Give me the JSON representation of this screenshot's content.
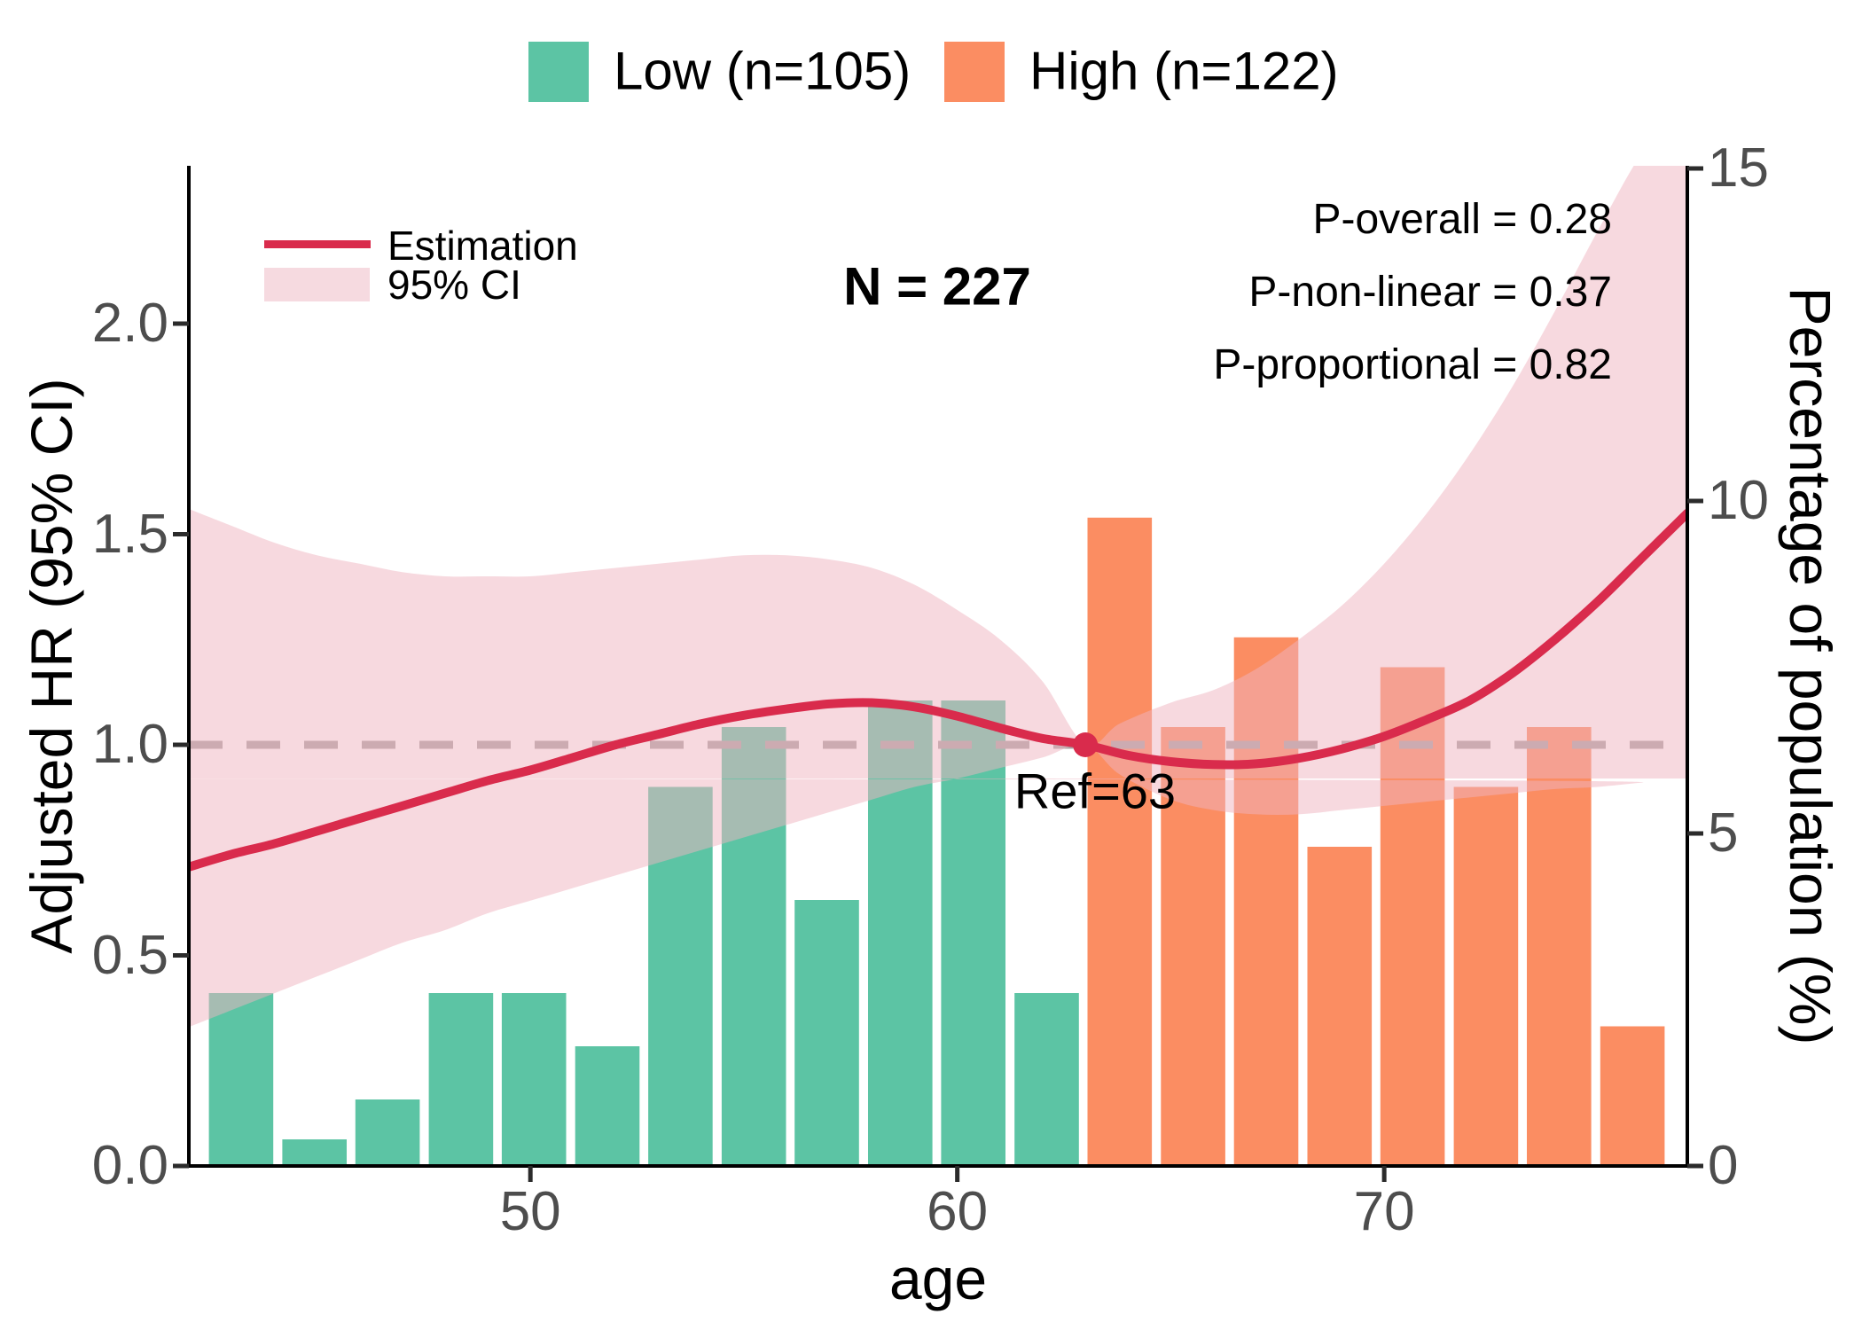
{
  "figure": {
    "legend_top": {
      "low": "Low (n=105)",
      "high": "High (n=122)"
    },
    "legend_inner": {
      "estimation": "Estimation",
      "ci": "95% CI"
    },
    "annotations": {
      "n": "N = 227",
      "p_overall": "P-overall = 0.28",
      "p_non_linear": "P-non-linear = 0.37",
      "p_proportional": "P-proportional = 0.82",
      "ref": "Ref=63"
    },
    "axes": {
      "left_title": "Adjusted HR (95% CI)",
      "right_title": "Percentage of population (%)",
      "bottom_title": "age"
    }
  },
  "colors": {
    "low_bar": "#5CC4A4",
    "high_bar": "#FB8D62",
    "estimation_line": "#D92B4C",
    "ci_band_fill_rgba": "rgba(239,179,191,0.5)",
    "ci_legend_swatch": "#F6DAE0",
    "dashed_reference": "#A8A2A2",
    "axis_line": "#000000",
    "tick_text": "#4d4d4d"
  },
  "chart_data": {
    "type": "combo (restricted-cubic-spline HR curve + population histogram)",
    "n_total": 227,
    "x_axis": {
      "label": "age",
      "range": [
        42.0,
        77.1
      ],
      "ticks": [
        50,
        60,
        70
      ]
    },
    "y_left_axis": {
      "label": "Adjusted HR (95% CI)",
      "range": [
        0,
        2.37
      ],
      "ticks": [
        "0.0",
        "0.5",
        "1.0",
        "1.5",
        "2.0"
      ],
      "tick_values": [
        0,
        0.5,
        1.0,
        1.5,
        2.0
      ]
    },
    "y_right_axis": {
      "label": "Percentage of population (%)",
      "range": [
        0,
        15
      ],
      "ticks": [
        "0",
        "5",
        "10",
        "15"
      ],
      "tick_values": [
        0,
        5,
        10,
        15
      ]
    },
    "reference": {
      "age": 63,
      "hr": 1.0,
      "label": "Ref=63"
    },
    "dashed_line_hr": 1.0,
    "stats": {
      "p_overall": 0.28,
      "p_non_linear": 0.37,
      "p_proportional": 0.82
    },
    "histogram": {
      "bin_width_years": 1.715,
      "groups": [
        {
          "id": "low",
          "name": "Low (n=105)",
          "n": 105,
          "color": "#5CC4A4"
        },
        {
          "id": "high",
          "name": "High (n=122)",
          "n": 122,
          "color": "#FB8D62"
        }
      ],
      "bars": [
        {
          "age_start": 42.47,
          "pct": 2.6,
          "group": "low"
        },
        {
          "age_start": 44.19,
          "pct": 0.4,
          "group": "low"
        },
        {
          "age_start": 45.9,
          "pct": 1.0,
          "group": "low"
        },
        {
          "age_start": 47.62,
          "pct": 2.6,
          "group": "low"
        },
        {
          "age_start": 49.33,
          "pct": 2.6,
          "group": "low"
        },
        {
          "age_start": 51.05,
          "pct": 1.8,
          "group": "low"
        },
        {
          "age_start": 52.76,
          "pct": 5.7,
          "group": "low"
        },
        {
          "age_start": 54.48,
          "pct": 6.6,
          "group": "low"
        },
        {
          "age_start": 56.19,
          "pct": 4.0,
          "group": "low"
        },
        {
          "age_start": 57.91,
          "pct": 7.0,
          "group": "low"
        },
        {
          "age_start": 59.62,
          "pct": 7.0,
          "group": "low"
        },
        {
          "age_start": 61.34,
          "pct": 2.6,
          "group": "low"
        },
        {
          "age_start": 63.05,
          "pct": 9.75,
          "group": "high"
        },
        {
          "age_start": 64.77,
          "pct": 6.6,
          "group": "high"
        },
        {
          "age_start": 66.48,
          "pct": 7.95,
          "group": "high"
        },
        {
          "age_start": 68.2,
          "pct": 4.8,
          "group": "high"
        },
        {
          "age_start": 69.91,
          "pct": 7.5,
          "group": "high"
        },
        {
          "age_start": 71.63,
          "pct": 5.7,
          "group": "high"
        },
        {
          "age_start": 73.34,
          "pct": 6.6,
          "group": "high"
        },
        {
          "age_start": 75.06,
          "pct": 2.1,
          "group": "high"
        }
      ]
    },
    "hr_curve": {
      "name": "Estimation",
      "points": [
        [
          42,
          0.71
        ],
        [
          43,
          0.74
        ],
        [
          44,
          0.765
        ],
        [
          45,
          0.795
        ],
        [
          46,
          0.825
        ],
        [
          47,
          0.855
        ],
        [
          48,
          0.885
        ],
        [
          49,
          0.915
        ],
        [
          50,
          0.94
        ],
        [
          51,
          0.97
        ],
        [
          52,
          1.0
        ],
        [
          53,
          1.025
        ],
        [
          54,
          1.05
        ],
        [
          55,
          1.07
        ],
        [
          56,
          1.085
        ],
        [
          57,
          1.097
        ],
        [
          58,
          1.1
        ],
        [
          59,
          1.09
        ],
        [
          60,
          1.068
        ],
        [
          61,
          1.04
        ],
        [
          62,
          1.015
        ],
        [
          63,
          1.0
        ],
        [
          64,
          0.975
        ],
        [
          65,
          0.96
        ],
        [
          66,
          0.953
        ],
        [
          67,
          0.955
        ],
        [
          68,
          0.968
        ],
        [
          69,
          0.99
        ],
        [
          70,
          1.02
        ],
        [
          71,
          1.06
        ],
        [
          72,
          1.105
        ],
        [
          73,
          1.17
        ],
        [
          74,
          1.25
        ],
        [
          75,
          1.34
        ],
        [
          76,
          1.44
        ],
        [
          77.1,
          1.55
        ]
      ]
    },
    "ci_band": {
      "name": "95% CI",
      "points": [
        [
          42,
          0.33,
          1.56
        ],
        [
          43,
          0.37,
          1.52
        ],
        [
          44,
          0.41,
          1.48
        ],
        [
          45,
          0.45,
          1.45
        ],
        [
          46,
          0.49,
          1.43
        ],
        [
          47,
          0.53,
          1.41
        ],
        [
          48,
          0.56,
          1.4
        ],
        [
          49,
          0.6,
          1.4
        ],
        [
          50,
          0.63,
          1.4
        ],
        [
          51,
          0.66,
          1.41
        ],
        [
          52,
          0.69,
          1.42
        ],
        [
          53,
          0.72,
          1.43
        ],
        [
          54,
          0.75,
          1.44
        ],
        [
          55,
          0.78,
          1.45
        ],
        [
          56,
          0.81,
          1.45
        ],
        [
          57,
          0.84,
          1.44
        ],
        [
          58,
          0.87,
          1.42
        ],
        [
          59,
          0.9,
          1.38
        ],
        [
          60,
          0.92,
          1.32
        ],
        [
          61,
          0.945,
          1.25
        ],
        [
          62,
          0.97,
          1.15
        ],
        [
          63,
          1.0,
          1.0
        ],
        [
          63.8,
          0.93,
          1.05
        ],
        [
          65,
          0.87,
          1.1
        ],
        [
          66,
          0.845,
          1.13
        ],
        [
          67,
          0.835,
          1.18
        ],
        [
          68,
          0.835,
          1.25
        ],
        [
          69,
          0.845,
          1.33
        ],
        [
          70,
          0.855,
          1.43
        ],
        [
          71,
          0.865,
          1.55
        ],
        [
          72,
          0.875,
          1.69
        ],
        [
          73,
          0.885,
          1.85
        ],
        [
          74,
          0.895,
          2.03
        ],
        [
          75,
          0.9,
          2.22
        ],
        [
          76,
          0.91,
          2.4
        ],
        [
          77.1,
          0.92,
          2.55
        ]
      ]
    }
  }
}
